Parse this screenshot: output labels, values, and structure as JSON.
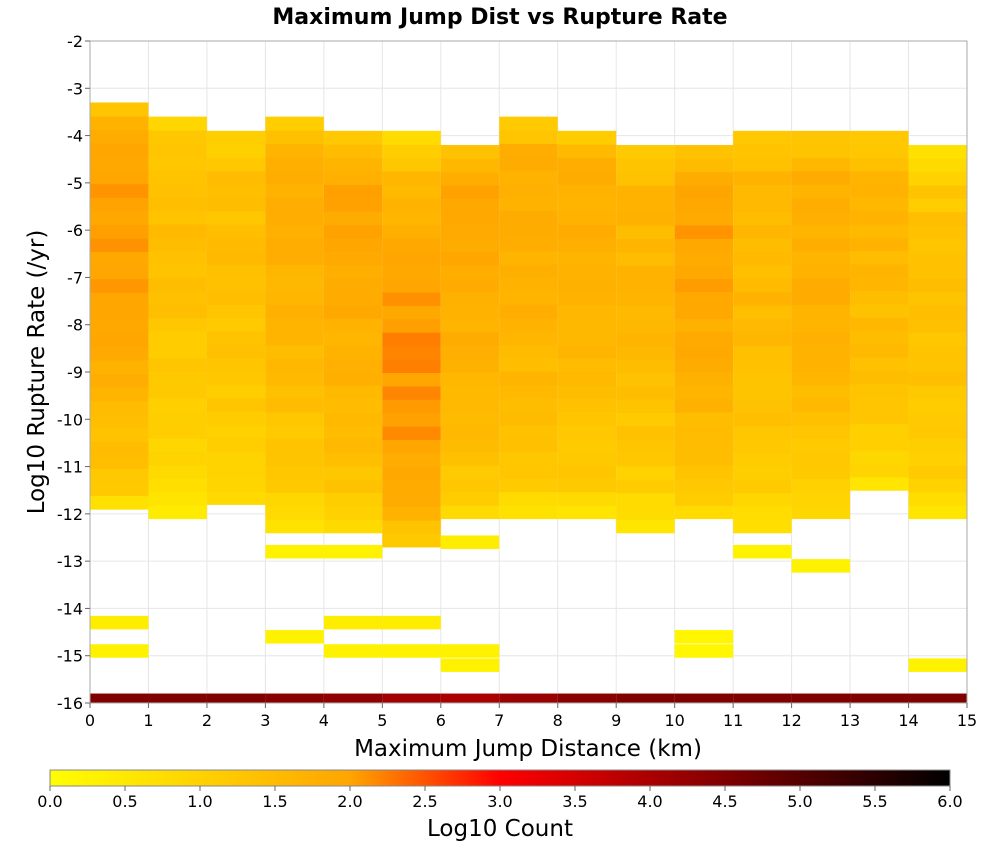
{
  "chart_data": {
    "type": "heatmap",
    "title": "Maximum Jump Dist vs Rupture Rate",
    "xlabel": "Maximum Jump Distance (km)",
    "ylabel": "Log10 Rupture Rate (/yr)",
    "colorbar_label": "Log10 Count",
    "xlim": [
      0,
      15
    ],
    "ylim": [
      -16,
      -2
    ],
    "clim": [
      0,
      6
    ],
    "x_ticks": [
      "0",
      "1",
      "2",
      "3",
      "4",
      "5",
      "6",
      "7",
      "8",
      "9",
      "10",
      "11",
      "12",
      "13",
      "14",
      "15"
    ],
    "y_ticks": [
      "-2",
      "-3",
      "-4",
      "-5",
      "-6",
      "-7",
      "-8",
      "-9",
      "-10",
      "-11",
      "-12",
      "-13",
      "-14",
      "-15",
      "-16"
    ],
    "colorbar_ticks": [
      "0.0",
      "0.5",
      "1.0",
      "1.5",
      "2.0",
      "2.5",
      "3.0",
      "3.5",
      "4.0",
      "4.5",
      "5.0",
      "5.5",
      "6.0"
    ],
    "x_bin_width": 1,
    "y_bin_height": 0.2857,
    "grid": true,
    "colormap": [
      "#ffff00",
      "#ffa500",
      "#ff0000",
      "#000000"
    ],
    "bottom_row": {
      "y": -16,
      "values": [
        4.5,
        4.5,
        4.5,
        4.4,
        4.3,
        4.1,
        4.0,
        4.2,
        4.4,
        4.5,
        4.5,
        4.5,
        4.5,
        4.5,
        4.5
      ]
    },
    "columns": [
      {
        "x": 0.5,
        "y_range": [
          -11.9,
          -3.3
        ],
        "peak_y": -5.5,
        "peak": 2.0,
        "edge": 0.3
      },
      {
        "x": 1.5,
        "y_range": [
          -12.1,
          -3.6
        ],
        "peak_y": -5.6,
        "peak": 1.4,
        "edge": 0.2
      },
      {
        "x": 2.5,
        "y_range": [
          -11.8,
          -3.9
        ],
        "peak_y": -5.3,
        "peak": 1.4,
        "edge": 0.4
      },
      {
        "x": 3.5,
        "y_range": [
          -12.4,
          -3.6
        ],
        "peak_y": -5.3,
        "peak": 1.7,
        "edge": 0.2
      },
      {
        "x": 4.5,
        "y_range": [
          -12.4,
          -3.9
        ],
        "peak_y": -5.6,
        "peak": 1.9,
        "edge": 0.3
      },
      {
        "x": 5.5,
        "y_range": [
          -12.7,
          -3.9
        ],
        "peak_y": -8.8,
        "peak": 2.1,
        "edge": 0.4
      },
      {
        "x": 6.5,
        "y_range": [
          -12.1,
          -4.2
        ],
        "peak_y": -5.6,
        "peak": 1.9,
        "edge": 0.4
      },
      {
        "x": 7.5,
        "y_range": [
          -12.1,
          -3.6
        ],
        "peak_y": -5.6,
        "peak": 1.8,
        "edge": 0.2
      },
      {
        "x": 8.5,
        "y_range": [
          -12.1,
          -3.9
        ],
        "peak_y": -5.6,
        "peak": 1.8,
        "edge": 0.2
      },
      {
        "x": 9.5,
        "y_range": [
          -12.4,
          -4.2
        ],
        "peak_y": -6.0,
        "peak": 1.6,
        "edge": 0.2
      },
      {
        "x": 10.5,
        "y_range": [
          -12.1,
          -4.2
        ],
        "peak_y": -5.6,
        "peak": 2.0,
        "edge": 0.3
      },
      {
        "x": 11.5,
        "y_range": [
          -12.4,
          -3.9
        ],
        "peak_y": -5.6,
        "peak": 1.6,
        "edge": 0.3
      },
      {
        "x": 12.5,
        "y_range": [
          -12.1,
          -3.9
        ],
        "peak_y": -5.6,
        "peak": 1.8,
        "edge": 0.3
      },
      {
        "x": 13.5,
        "y_range": [
          -11.5,
          -3.9
        ],
        "peak_y": -5.6,
        "peak": 1.6,
        "edge": 0.3
      },
      {
        "x": 14.5,
        "y_range": [
          -12.1,
          -4.2
        ],
        "peak_y": -7.7,
        "peak": 1.4,
        "edge": 0.2
      }
    ],
    "isolated_cells": [
      {
        "x": 0.5,
        "y": -14.3,
        "value": 0.4
      },
      {
        "x": 0.5,
        "y": -14.9,
        "value": 0.3
      },
      {
        "x": 3.5,
        "y": -12.8,
        "value": 0.3
      },
      {
        "x": 3.5,
        "y": -14.6,
        "value": 0.3
      },
      {
        "x": 4.5,
        "y": -12.8,
        "value": 0.3
      },
      {
        "x": 4.5,
        "y": -14.3,
        "value": 0.4
      },
      {
        "x": 4.5,
        "y": -14.9,
        "value": 0.3
      },
      {
        "x": 5.5,
        "y": -14.3,
        "value": 0.4
      },
      {
        "x": 5.5,
        "y": -14.9,
        "value": 0.3
      },
      {
        "x": 6.5,
        "y": -12.6,
        "value": 0.4
      },
      {
        "x": 6.5,
        "y": -14.9,
        "value": 0.3
      },
      {
        "x": 6.5,
        "y": -15.2,
        "value": 0.3
      },
      {
        "x": 10.5,
        "y": -14.6,
        "value": 0.2
      },
      {
        "x": 10.5,
        "y": -14.9,
        "value": 0.2
      },
      {
        "x": 11.5,
        "y": -12.8,
        "value": 0.3
      },
      {
        "x": 12.5,
        "y": -13.1,
        "value": 0.3
      },
      {
        "x": 14.5,
        "y": -15.2,
        "value": 0.3
      }
    ]
  }
}
